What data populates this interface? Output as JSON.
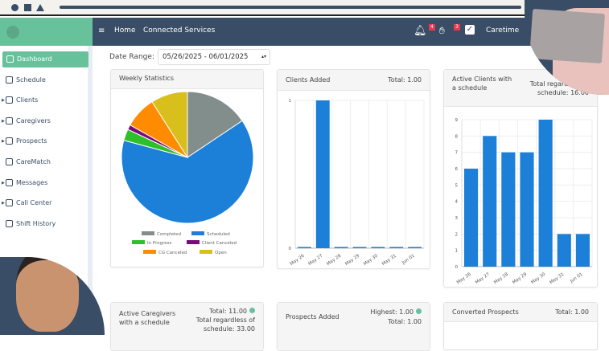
{
  "app": {
    "name": "caretime"
  },
  "colors": {
    "header": "#3a4d66",
    "brand": "#67c29c",
    "bar": "#1c7fd8"
  },
  "header": {
    "nav": [
      "Home",
      "Connected Services"
    ],
    "notifications_badge": "4",
    "requests_badge": "3",
    "user": "Caretime"
  },
  "sidebar": {
    "items": [
      {
        "label": "Dashboard",
        "icon": "grid-icon",
        "active": true
      },
      {
        "label": "Schedule",
        "icon": "calendar-icon"
      },
      {
        "label": "Clients",
        "icon": "user-icon",
        "expandable": true
      },
      {
        "label": "Caregivers",
        "icon": "user-icon",
        "expandable": true
      },
      {
        "label": "Prospects",
        "icon": "user-plus-icon",
        "expandable": true
      },
      {
        "label": "CareMatch",
        "icon": "copy-icon"
      },
      {
        "label": "Messages",
        "icon": "chat-icon",
        "expandable": true
      },
      {
        "label": "Call Center",
        "icon": "headset-icon",
        "expandable": true
      },
      {
        "label": "Shift History",
        "icon": "clock-icon"
      }
    ]
  },
  "filters": {
    "date_range_label": "Date Range:",
    "date_range_value": "05/26/2025 - 06/01/2025"
  },
  "cards": {
    "weekly": {
      "title": "Weekly Statistics"
    },
    "clients_added": {
      "title": "Clients Added",
      "total": "Total: 1.00"
    },
    "active_clients": {
      "title": "Active Clients with a schedule",
      "total": "Total regardless of schedule: 16.00"
    },
    "active_caregivers": {
      "title": "Active Caregivers with a schedule",
      "total": "Total: 11.00",
      "total2": "Total regardless of schedule: 33.00"
    },
    "prospects_added": {
      "title": "Prospects Added",
      "highest": "Highest: 1.00",
      "total": "Total: 1.00"
    },
    "converted": {
      "title": "Converted Prospects",
      "total": "Total: 1.00"
    }
  },
  "chart_data": [
    {
      "type": "pie",
      "legend_position": "bottom",
      "slices": [
        {
          "name": "Completed",
          "value": 15.6,
          "color": "#828e8c"
        },
        {
          "name": "Scheduled",
          "value": 63.6,
          "color": "#1c7fd8"
        },
        {
          "name": "In Progress",
          "value": 2.8,
          "color": "#2ec02a"
        },
        {
          "name": "Client Canceled",
          "value": 1.2,
          "color": "#7a0a7a"
        },
        {
          "name": "CG Canceled",
          "value": 7.8,
          "color": "#ff8c00"
        },
        {
          "name": "Open",
          "value": 9.0,
          "color": "#d9bf1c"
        }
      ]
    },
    {
      "type": "bar",
      "categories": [
        "May 26",
        "May 27",
        "May 28",
        "May 29",
        "May 30",
        "May 31",
        "Jun 01"
      ],
      "values": [
        0,
        1,
        0,
        0,
        0,
        0,
        0
      ],
      "ylim": [
        0,
        1
      ],
      "yticks": [
        0,
        1
      ],
      "grid": true
    },
    {
      "type": "bar",
      "categories": [
        "May 26",
        "May 27",
        "May 28",
        "May 29",
        "May 30",
        "May 31",
        "Jun 01"
      ],
      "values": [
        6,
        8,
        7,
        7,
        9,
        2,
        2
      ],
      "ylim": [
        0,
        9
      ],
      "yticks": [
        0,
        1,
        2,
        3,
        4,
        5,
        6,
        7,
        8,
        9
      ],
      "grid": true
    }
  ]
}
